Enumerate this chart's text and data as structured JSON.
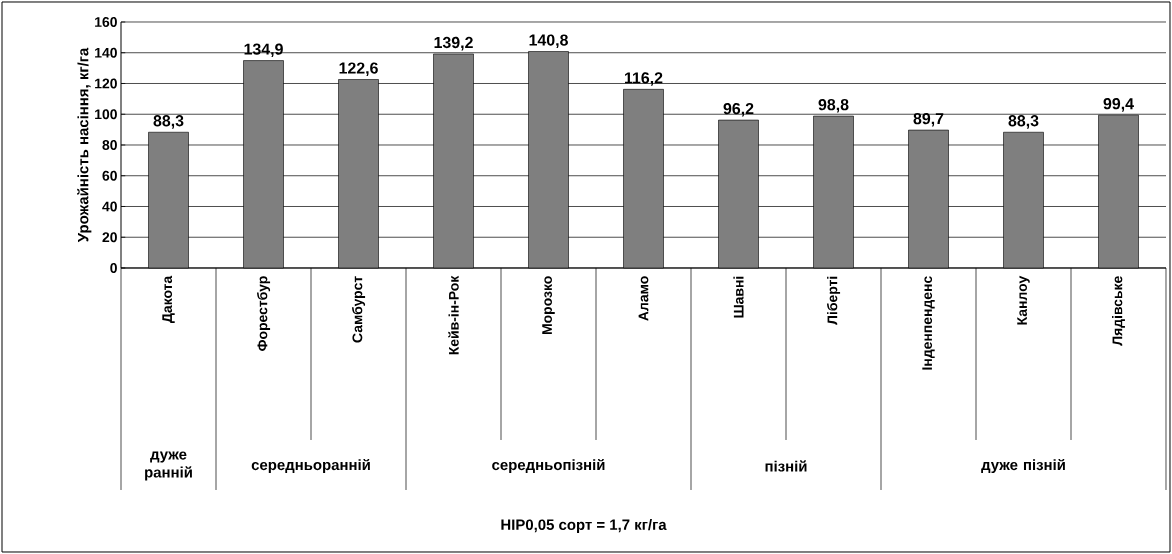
{
  "chart_data": {
    "type": "bar",
    "ylabel": "Урожайність насіння, кг/га",
    "categories": [
      "Дакота",
      "Форестбур",
      "Самбурст",
      "Кейв-ін-Рок",
      "Морозко",
      "Аламо",
      "Шавні",
      "Ліберті",
      "Інденпенденс",
      "Канлоу",
      "Лядівське"
    ],
    "values": [
      88.3,
      134.9,
      122.6,
      139.2,
      140.8,
      116.2,
      96.2,
      98.8,
      89.7,
      88.3,
      99.4
    ],
    "value_labels": [
      "88,3",
      "134,9",
      "122,6",
      "139,2",
      "140,8",
      "116,2",
      "96,2",
      "98,8",
      "89,7",
      "88,3",
      "99,4"
    ],
    "color": "#7f7f7f",
    "annotations": [
      "дуже ранній",
      "середньоранній",
      "середньопізній",
      "пізній",
      "дуже пізній",
      "НІР0,05 сорт = 1,7 кг/га"
    ],
    "ylim": [
      0,
      160
    ],
    "yticks": [
      0,
      20,
      40,
      60,
      80,
      100,
      120,
      140,
      160
    ],
    "grid": "y"
  }
}
